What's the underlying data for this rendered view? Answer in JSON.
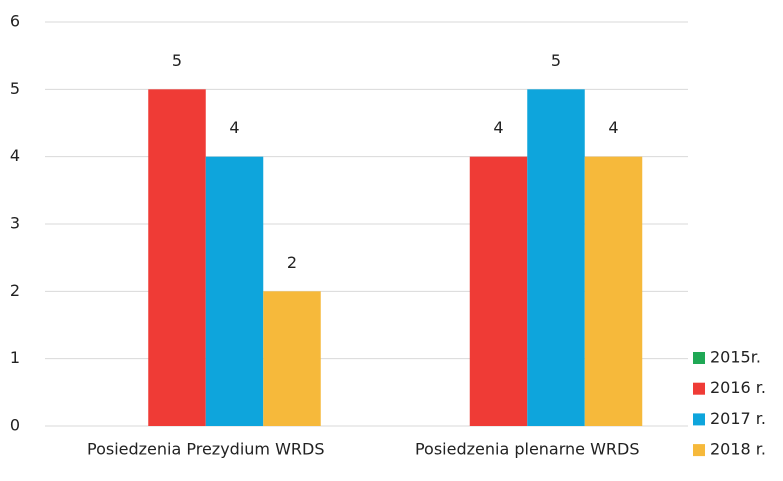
{
  "chart_data": {
    "type": "bar",
    "categories": [
      "Posiedzenia Prezydium WRDS",
      "Posiedzenia plenarne WRDS"
    ],
    "series": [
      {
        "name": "2015r.",
        "color": "#1fa855",
        "values": [
          null,
          null
        ]
      },
      {
        "name": "2016 r.",
        "color": "#ef3b36",
        "values": [
          5,
          4
        ]
      },
      {
        "name": "2017 r.",
        "color": "#0ea5dc",
        "values": [
          4,
          5
        ]
      },
      {
        "name": "2018 r.",
        "color": "#f6b93b",
        "values": [
          2,
          4
        ]
      }
    ],
    "ylim": [
      0,
      6
    ],
    "yticks": [
      0,
      1,
      2,
      3,
      4,
      5,
      6
    ],
    "grid": true,
    "legend": "bottom-right"
  }
}
